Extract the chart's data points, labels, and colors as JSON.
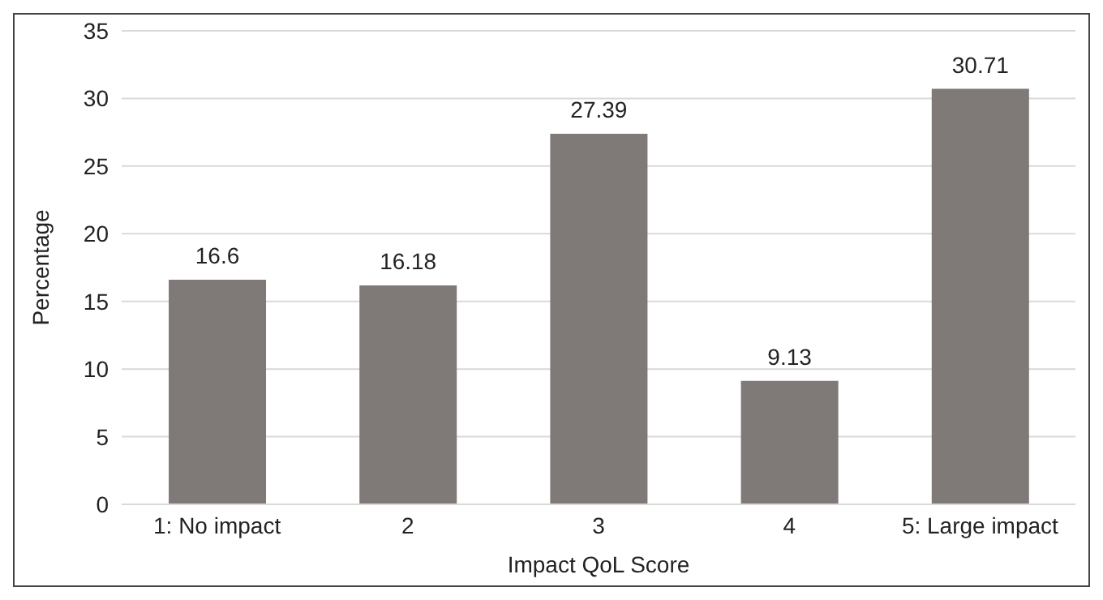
{
  "chart_data": {
    "type": "bar",
    "xlabel": "Impact QoL Score",
    "ylabel": "Percentage",
    "categories": [
      "1: No impact",
      "2",
      "3",
      "4",
      "5: Large impact"
    ],
    "values": [
      16.6,
      16.18,
      27.39,
      9.13,
      30.71
    ],
    "color": "#7f7978",
    "ylim": [
      0,
      35
    ],
    "yticks": [
      0,
      5,
      10,
      15,
      20,
      25,
      30,
      35
    ],
    "grid": "y",
    "data_labels": true
  }
}
